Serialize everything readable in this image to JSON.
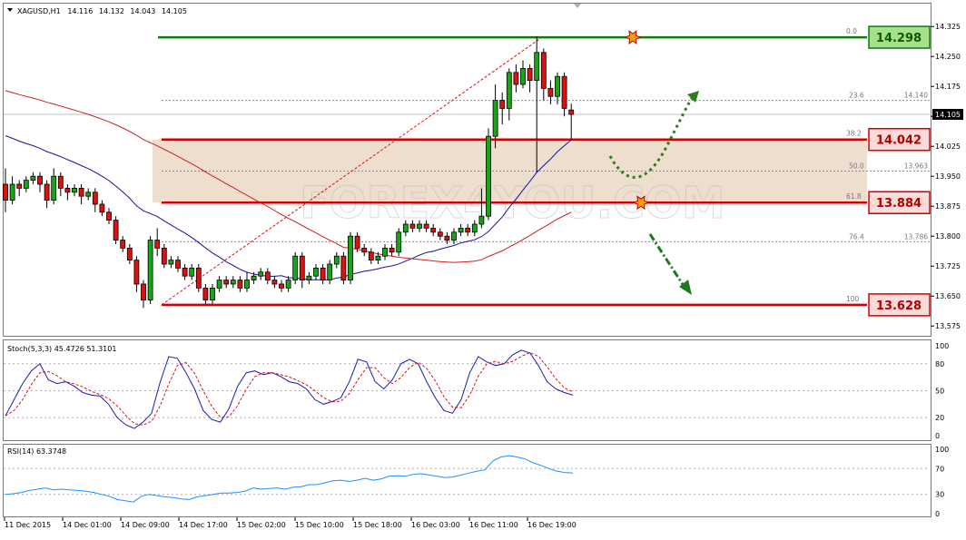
{
  "header": {
    "symbol": "XAGUSD,H1",
    "open": "14.116",
    "high": "14.132",
    "low": "14.043",
    "close": "14.105"
  },
  "chart_data": {
    "type": "candlestick",
    "symbol": "XAGUSD,H1",
    "ylim": [
      13.555,
      14.38
    ],
    "y_ticks": [
      "14.325",
      "14.250",
      "14.175",
      "14.100",
      "14.025",
      "13.950",
      "13.875",
      "13.800",
      "13.725",
      "13.650",
      "13.575"
    ],
    "current_price_label": "14.105",
    "x_ticks": [
      "11 Dec 2015",
      "14 Dec 01:00",
      "14 Dec 09:00",
      "14 Dec 17:00",
      "15 Dec 02:00",
      "15 Dec 10:00",
      "15 Dec 18:00",
      "16 Dec 03:00",
      "16 Dec 11:00",
      "16 Dec 19:00"
    ],
    "candles": [
      [
        13.93,
        13.89,
        13.97,
        13.86
      ],
      [
        13.89,
        13.93,
        13.95,
        13.88
      ],
      [
        13.93,
        13.92,
        13.94,
        13.9
      ],
      [
        13.92,
        13.94,
        13.95,
        13.91
      ],
      [
        13.94,
        13.95,
        13.96,
        13.93
      ],
      [
        13.95,
        13.93,
        13.96,
        13.91
      ],
      [
        13.93,
        13.89,
        13.94,
        13.87
      ],
      [
        13.89,
        13.95,
        13.97,
        13.88
      ],
      [
        13.95,
        13.92,
        13.96,
        13.9
      ],
      [
        13.92,
        13.91,
        13.93,
        13.89
      ],
      [
        13.91,
        13.92,
        13.93,
        13.9
      ],
      [
        13.92,
        13.9,
        13.93,
        13.88
      ],
      [
        13.9,
        13.91,
        13.92,
        13.89
      ],
      [
        13.91,
        13.88,
        13.92,
        13.86
      ],
      [
        13.88,
        13.86,
        13.89,
        13.85
      ],
      [
        13.86,
        13.84,
        13.87,
        13.83
      ],
      [
        13.84,
        13.79,
        13.85,
        13.78
      ],
      [
        13.79,
        13.77,
        13.8,
        13.76
      ],
      [
        13.77,
        13.74,
        13.78,
        13.73
      ],
      [
        13.74,
        13.68,
        13.75,
        13.66
      ],
      [
        13.68,
        13.64,
        13.69,
        13.62
      ],
      [
        13.64,
        13.79,
        13.8,
        13.63
      ],
      [
        13.79,
        13.77,
        13.82,
        13.75
      ],
      [
        13.77,
        13.73,
        13.78,
        13.72
      ],
      [
        13.73,
        13.74,
        13.75,
        13.72
      ],
      [
        13.74,
        13.72,
        13.75,
        13.71
      ],
      [
        13.72,
        13.7,
        13.73,
        13.69
      ],
      [
        13.7,
        13.72,
        13.73,
        13.69
      ],
      [
        13.72,
        13.67,
        13.73,
        13.66
      ],
      [
        13.67,
        13.64,
        13.68,
        13.63
      ],
      [
        13.64,
        13.67,
        13.68,
        13.63
      ],
      [
        13.67,
        13.69,
        13.7,
        13.66
      ],
      [
        13.69,
        13.68,
        13.7,
        13.67
      ],
      [
        13.68,
        13.69,
        13.7,
        13.67
      ],
      [
        13.69,
        13.67,
        13.7,
        13.66
      ],
      [
        13.67,
        13.69,
        13.71,
        13.66
      ],
      [
        13.69,
        13.7,
        13.71,
        13.68
      ],
      [
        13.7,
        13.71,
        13.72,
        13.69
      ],
      [
        13.71,
        13.69,
        13.72,
        13.68
      ],
      [
        13.69,
        13.68,
        13.7,
        13.67
      ],
      [
        13.68,
        13.67,
        13.69,
        13.66
      ],
      [
        13.67,
        13.69,
        13.7,
        13.66
      ],
      [
        13.69,
        13.75,
        13.76,
        13.68
      ],
      [
        13.75,
        13.69,
        13.76,
        13.67
      ],
      [
        13.69,
        13.7,
        13.71,
        13.68
      ],
      [
        13.7,
        13.72,
        13.73,
        13.69
      ],
      [
        13.72,
        13.69,
        13.73,
        13.68
      ],
      [
        13.69,
        13.73,
        13.74,
        13.68
      ],
      [
        13.73,
        13.75,
        13.76,
        13.72
      ],
      [
        13.75,
        13.69,
        13.76,
        13.68
      ],
      [
        13.69,
        13.8,
        13.81,
        13.68
      ],
      [
        13.8,
        13.77,
        13.81,
        13.76
      ],
      [
        13.77,
        13.76,
        13.78,
        13.75
      ],
      [
        13.76,
        13.74,
        13.77,
        13.73
      ],
      [
        13.74,
        13.75,
        13.76,
        13.73
      ],
      [
        13.75,
        13.77,
        13.78,
        13.74
      ],
      [
        13.77,
        13.76,
        13.78,
        13.75
      ],
      [
        13.76,
        13.81,
        13.82,
        13.75
      ],
      [
        13.81,
        13.83,
        13.84,
        13.8
      ],
      [
        13.83,
        13.82,
        13.84,
        13.81
      ],
      [
        13.82,
        13.83,
        13.84,
        13.81
      ],
      [
        13.83,
        13.82,
        13.84,
        13.81
      ],
      [
        13.82,
        13.81,
        13.83,
        13.8
      ],
      [
        13.81,
        13.8,
        13.82,
        13.79
      ],
      [
        13.8,
        13.79,
        13.81,
        13.78
      ],
      [
        13.79,
        13.81,
        13.82,
        13.78
      ],
      [
        13.81,
        13.82,
        13.83,
        13.8
      ],
      [
        13.82,
        13.81,
        13.83,
        13.8
      ],
      [
        13.81,
        13.83,
        13.84,
        13.8
      ],
      [
        13.83,
        13.85,
        13.92,
        13.82
      ],
      [
        13.85,
        14.05,
        14.07,
        13.84
      ],
      [
        14.05,
        14.14,
        14.18,
        14.02
      ],
      [
        14.14,
        14.12,
        14.16,
        14.08
      ],
      [
        14.12,
        14.21,
        14.22,
        14.09
      ],
      [
        14.21,
        14.18,
        14.23,
        14.16
      ],
      [
        14.18,
        14.22,
        14.24,
        14.17
      ],
      [
        14.22,
        14.19,
        14.23,
        14.16
      ],
      [
        14.19,
        14.26,
        14.3,
        13.96
      ],
      [
        14.26,
        14.17,
        14.27,
        14.14
      ],
      [
        14.17,
        14.15,
        14.19,
        14.13
      ],
      [
        14.15,
        14.2,
        14.21,
        14.13
      ],
      [
        14.2,
        14.12,
        14.21,
        14.1
      ],
      [
        14.116,
        14.105,
        14.132,
        14.043
      ]
    ],
    "levels": [
      {
        "fib": "0.0",
        "price": "14.298",
        "color": "#0a7d0a",
        "box_fill": "#a6e08a"
      },
      {
        "fib": "38.2",
        "price": "14.042",
        "color": "#d40000",
        "box_fill": "#fbdada"
      },
      {
        "fib": "61.8",
        "price": "13.884",
        "color": "#d40000",
        "box_fill": "#fbdada"
      },
      {
        "fib": "100",
        "price": "13.628",
        "color": "#d40000",
        "box_fill": "#fbdada"
      }
    ],
    "fib_extra": [
      {
        "fib": "23.6",
        "price": "14.140"
      },
      {
        "fib": "50.0",
        "price": "13.963"
      },
      {
        "fib": "76.4",
        "price": "13.786"
      }
    ],
    "zone": {
      "from": 13.884,
      "to": 14.042,
      "fill": "#ead8c6"
    },
    "ma_fast_color": "#1414a0",
    "ma_slow_color": "#cc2020",
    "watermark": "FOREX4YOU.COM",
    "stoch": {
      "label": "Stoch(5,3,3) 45.4726 51.3101",
      "ticks": [
        "100",
        "80",
        "50",
        "20",
        "0"
      ],
      "ylim": [
        0,
        100
      ]
    },
    "rsi": {
      "label": "RSI(14) 63.3748",
      "ticks": [
        "100",
        "70",
        "30",
        "0"
      ],
      "ylim": [
        0,
        100
      ]
    }
  }
}
